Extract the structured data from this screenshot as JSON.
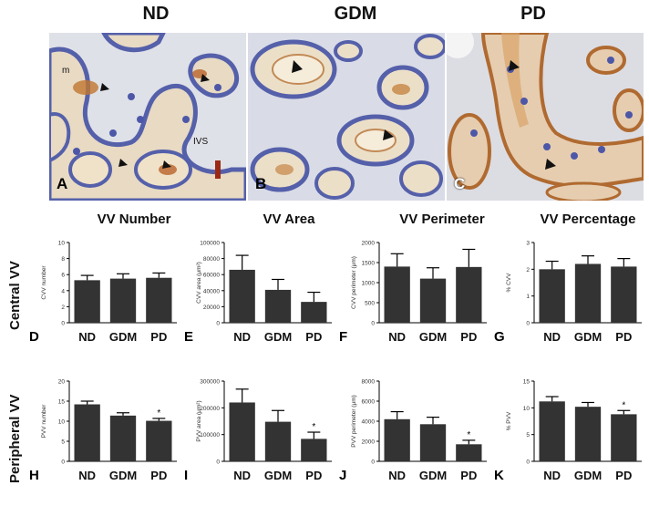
{
  "columns": [
    "ND",
    "GDM",
    "PD"
  ],
  "micrographs": [
    {
      "panel": "A",
      "labels": [
        "m",
        "IVS"
      ]
    },
    {
      "panel": "B",
      "labels": []
    },
    {
      "panel": "C",
      "labels": []
    }
  ],
  "metrics": [
    "VV Number",
    "VV Area",
    "VV Perimeter",
    "VV Percentage"
  ],
  "rows": [
    "Central VV",
    "Peripheral VV"
  ],
  "chart_data": [
    {
      "panel": "D",
      "type": "bar",
      "categories": [
        "ND",
        "GDM",
        "PD"
      ],
      "values": [
        5.3,
        5.5,
        5.6
      ],
      "errors": [
        0.6,
        0.6,
        0.6
      ],
      "ylabel": "CVV number",
      "ylim": [
        0,
        10
      ],
      "yticks": [
        "0",
        "2",
        "4",
        "6",
        "8",
        "10"
      ],
      "significant": [
        false,
        false,
        false
      ]
    },
    {
      "panel": "E",
      "type": "bar",
      "categories": [
        "ND",
        "GDM",
        "PD"
      ],
      "values": [
        66000,
        41000,
        26000
      ],
      "errors": [
        18000,
        13000,
        12000
      ],
      "ylabel": "CVV area (μm²)",
      "ylim": [
        0,
        100000
      ],
      "yticks": [
        "0",
        "20000",
        "40000",
        "60000",
        "80000",
        "100000"
      ],
      "significant": [
        false,
        false,
        false
      ]
    },
    {
      "panel": "F",
      "type": "bar",
      "categories": [
        "ND",
        "GDM",
        "PD"
      ],
      "values": [
        1400,
        1100,
        1390
      ],
      "errors": [
        320,
        270,
        440
      ],
      "ylabel": "CVV perimeter (μm)",
      "ylim": [
        0,
        2000
      ],
      "yticks": [
        "0",
        "500",
        "1000",
        "1500",
        "2000"
      ],
      "significant": [
        false,
        false,
        false
      ]
    },
    {
      "panel": "G",
      "type": "bar",
      "categories": [
        "ND",
        "GDM",
        "PD"
      ],
      "values": [
        2.0,
        2.2,
        2.1
      ],
      "errors": [
        0.3,
        0.3,
        0.3
      ],
      "ylabel": "% CVV",
      "ylim": [
        0,
        3
      ],
      "yticks": [
        "0",
        "1",
        "2",
        "3"
      ],
      "significant": [
        false,
        false,
        false
      ]
    },
    {
      "panel": "H",
      "type": "bar",
      "categories": [
        "ND",
        "GDM",
        "PD"
      ],
      "values": [
        14.2,
        11.4,
        10.1
      ],
      "errors": [
        0.8,
        0.7,
        0.6
      ],
      "ylabel": "PVV number",
      "ylim": [
        0,
        20
      ],
      "yticks": [
        "0",
        "5",
        "10",
        "15",
        "20"
      ],
      "significant": [
        false,
        false,
        true
      ]
    },
    {
      "panel": "I",
      "type": "bar",
      "categories": [
        "ND",
        "GDM",
        "PD"
      ],
      "values": [
        220000,
        148000,
        84000
      ],
      "errors": [
        50000,
        42000,
        25000
      ],
      "ylabel": "PVV area (μm²)",
      "ylim": [
        0,
        300000
      ],
      "yticks": [
        "0",
        "100000",
        "200000",
        "300000"
      ],
      "significant": [
        false,
        false,
        true
      ]
    },
    {
      "panel": "J",
      "type": "bar",
      "categories": [
        "ND",
        "GDM",
        "PD"
      ],
      "values": [
        4200,
        3700,
        1700
      ],
      "errors": [
        750,
        700,
        400
      ],
      "ylabel": "PVV perimeter (μm)",
      "ylim": [
        0,
        8000
      ],
      "yticks": [
        "0",
        "2000",
        "4000",
        "6000",
        "8000"
      ],
      "significant": [
        false,
        false,
        true
      ]
    },
    {
      "panel": "K",
      "type": "bar",
      "categories": [
        "ND",
        "GDM",
        "PD"
      ],
      "values": [
        11.2,
        10.2,
        8.8
      ],
      "errors": [
        0.9,
        0.8,
        0.7
      ],
      "ylabel": "% PVV",
      "ylim": [
        0,
        15
      ],
      "yticks": [
        "0",
        "5",
        "10",
        "15"
      ],
      "significant": [
        false,
        false,
        true
      ]
    }
  ],
  "significance_marker": "*",
  "colors": {
    "bar": "#333333",
    "tissue": "#e9dcc6",
    "nuclei": "#4d57a8",
    "stain": "#b86a2e",
    "background": "#d9dbe2"
  }
}
